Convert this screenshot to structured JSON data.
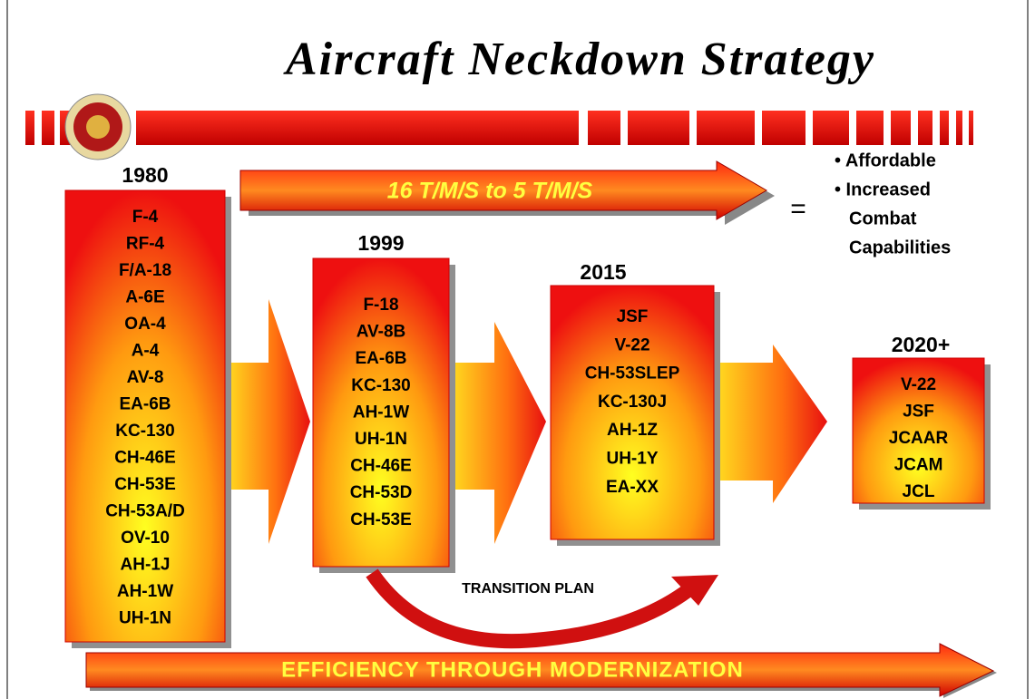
{
  "title": "Aircraft Neckdown Strategy",
  "banner": "16 T/M/S to 5 T/M/S",
  "equals": "=",
  "bullets": [
    "• Affordable",
    "• Increased",
    "Combat",
    "Capabilities"
  ],
  "columns": [
    {
      "year": "1980",
      "items": [
        "F-4",
        "RF-4",
        "F/A-18",
        "A-6E",
        "OA-4",
        "A-4",
        "AV-8",
        "EA-6B",
        "KC-130",
        "CH-46E",
        "CH-53E",
        "CH-53A/D",
        "OV-10",
        "AH-1J",
        "AH-1W",
        "UH-1N"
      ]
    },
    {
      "year": "1999",
      "items": [
        "F-18",
        "AV-8B",
        "EA-6B",
        "KC-130",
        "AH-1W",
        "UH-1N",
        "CH-46E",
        "CH-53D",
        "CH-53E"
      ]
    },
    {
      "year": "2015",
      "items": [
        "JSF",
        "V-22",
        "CH-53SLEP",
        "KC-130J",
        "AH-1Z",
        "UH-1Y",
        "EA-XX"
      ]
    },
    {
      "year": "2020+",
      "items": [
        "V-22",
        "JSF",
        "JCAAR",
        "JCAM",
        "JCL"
      ]
    }
  ],
  "transition": "TRANSITION PLAN",
  "footer": "EFFICIENCY THROUGH MODERNIZATION"
}
